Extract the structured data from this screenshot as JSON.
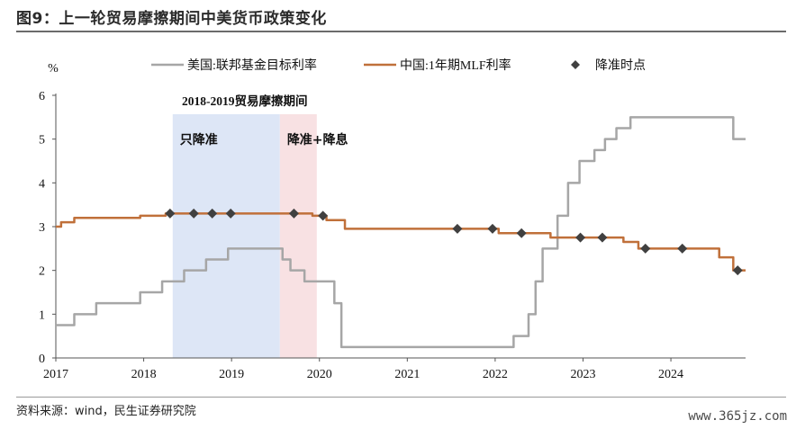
{
  "title": "图9：上一轮贸易摩擦期间中美货币政策变化",
  "source": "资料来源：wind，民生证券研究院",
  "watermark": "www.365jz.com",
  "colors": {
    "us": "#a6a6a6",
    "cn": "#c0703a",
    "marker": "#404040",
    "shade_blue": "#dde6f6",
    "shade_pink": "#f8e1e3"
  },
  "chart_data": {
    "type": "line",
    "title": "",
    "ylabel": "%",
    "ylim": [
      0,
      6
    ],
    "yticks": [
      "0",
      "1",
      "2",
      "3",
      "4",
      "5",
      "6"
    ],
    "xlim": [
      2017.0,
      2024.85
    ],
    "xticks": [
      "2017",
      "2018",
      "2019",
      "2020",
      "2021",
      "2022",
      "2023",
      "2024"
    ],
    "legend_position": "top",
    "shaded_periods": [
      {
        "from": 2018.33,
        "to": 2019.55,
        "label": "只降准",
        "color": "#dde6f6"
      },
      {
        "from": 2019.55,
        "to": 2019.97,
        "label": "降准+降息",
        "color": "#f8e1e3"
      }
    ],
    "period_annotation": "2018-2019贸易摩擦期间",
    "series": [
      {
        "name": "美国:联邦基金目标利率",
        "color": "#a6a6a6",
        "step": true,
        "points": [
          [
            2017.0,
            0.75
          ],
          [
            2017.21,
            1.0
          ],
          [
            2017.46,
            1.25
          ],
          [
            2017.96,
            1.5
          ],
          [
            2018.21,
            1.75
          ],
          [
            2018.46,
            2.0
          ],
          [
            2018.71,
            2.25
          ],
          [
            2018.96,
            2.5
          ],
          [
            2019.58,
            2.25
          ],
          [
            2019.67,
            2.0
          ],
          [
            2019.83,
            1.75
          ],
          [
            2020.17,
            1.25
          ],
          [
            2020.25,
            0.25
          ],
          [
            2022.21,
            0.5
          ],
          [
            2022.38,
            1.0
          ],
          [
            2022.46,
            1.75
          ],
          [
            2022.54,
            2.5
          ],
          [
            2022.71,
            3.25
          ],
          [
            2022.83,
            4.0
          ],
          [
            2022.96,
            4.5
          ],
          [
            2023.13,
            4.75
          ],
          [
            2023.25,
            5.0
          ],
          [
            2023.38,
            5.25
          ],
          [
            2023.54,
            5.5
          ],
          [
            2024.71,
            5.0
          ],
          [
            2024.85,
            5.0
          ]
        ]
      },
      {
        "name": "中国:1年期MLF利率",
        "color": "#c0703a",
        "step": true,
        "points": [
          [
            2017.0,
            3.0
          ],
          [
            2017.06,
            3.1
          ],
          [
            2017.21,
            3.2
          ],
          [
            2017.96,
            3.25
          ],
          [
            2018.25,
            3.3
          ],
          [
            2019.92,
            3.25
          ],
          [
            2020.08,
            3.15
          ],
          [
            2020.29,
            2.95
          ],
          [
            2022.04,
            2.85
          ],
          [
            2022.63,
            2.75
          ],
          [
            2023.46,
            2.65
          ],
          [
            2023.63,
            2.5
          ],
          [
            2024.55,
            2.3
          ],
          [
            2024.71,
            2.0
          ],
          [
            2024.85,
            2.0
          ]
        ]
      },
      {
        "name": "降准时点",
        "color": "#404040",
        "type": "scatter",
        "points": [
          [
            2018.3,
            3.3
          ],
          [
            2018.57,
            3.3
          ],
          [
            2018.78,
            3.3
          ],
          [
            2018.99,
            3.3
          ],
          [
            2019.71,
            3.3
          ],
          [
            2020.04,
            3.25
          ],
          [
            2021.57,
            2.95
          ],
          [
            2021.97,
            2.95
          ],
          [
            2022.3,
            2.85
          ],
          [
            2022.97,
            2.75
          ],
          [
            2023.22,
            2.75
          ],
          [
            2023.71,
            2.5
          ],
          [
            2024.13,
            2.5
          ],
          [
            2024.76,
            2.0
          ]
        ]
      }
    ]
  }
}
